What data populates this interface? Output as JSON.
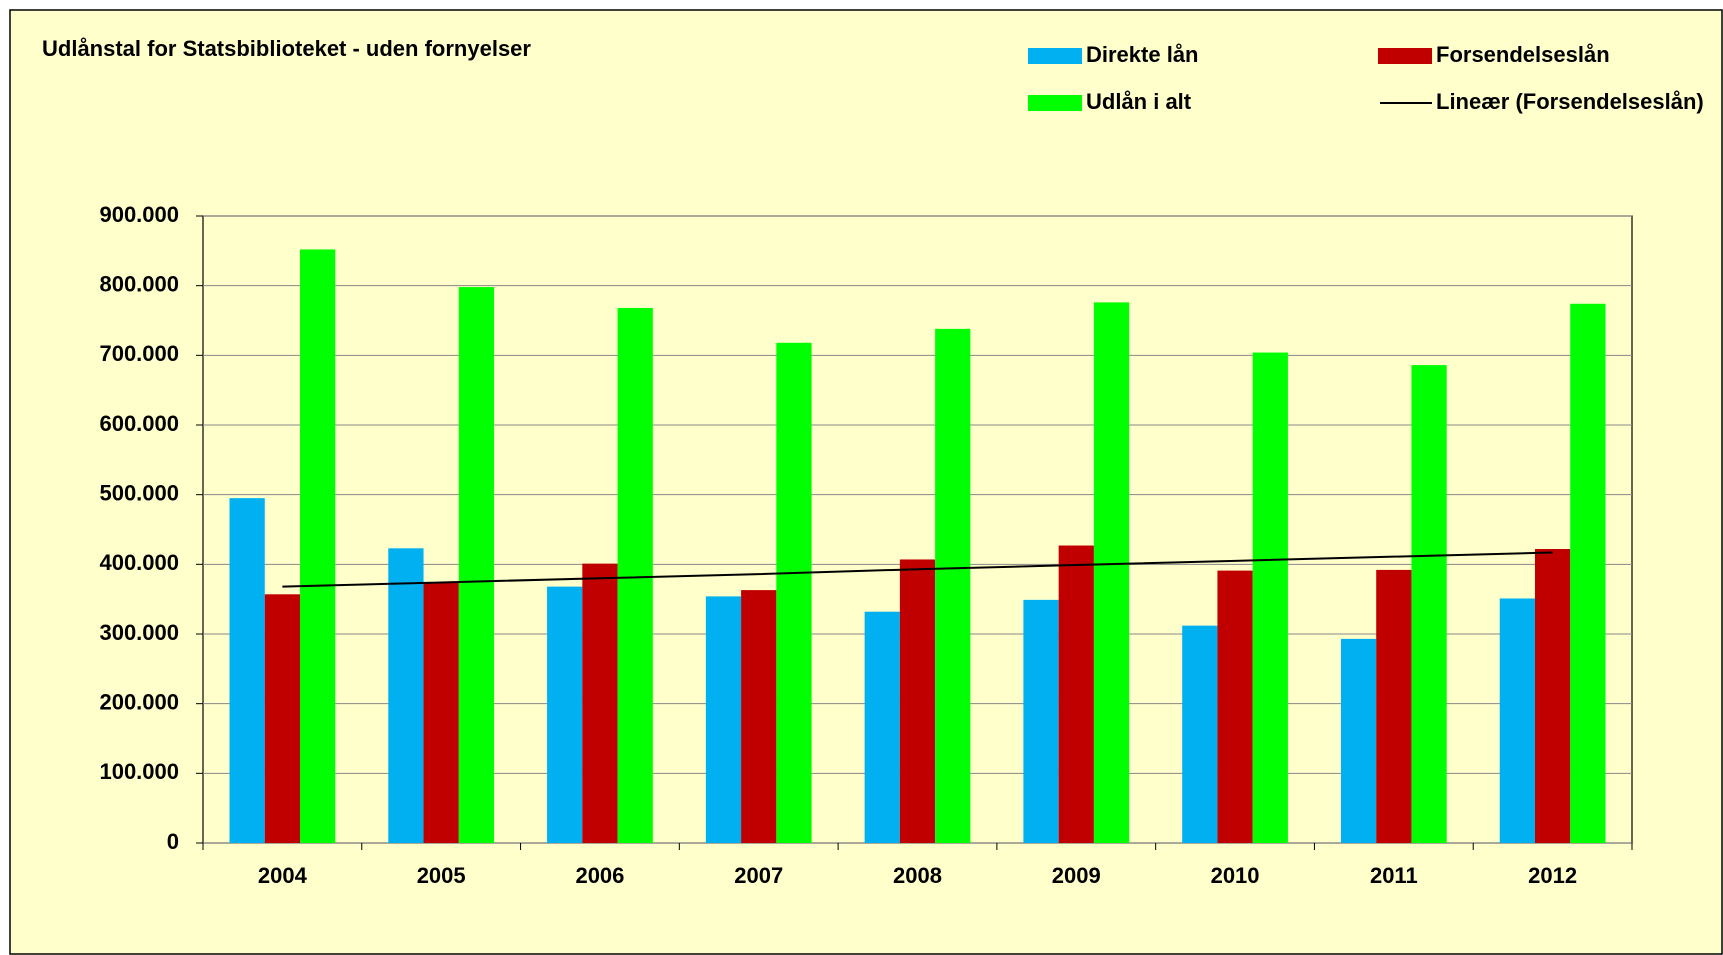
{
  "chart_data": {
    "type": "bar",
    "title": "Udlånstal for Statsbiblioteket - uden fornyelser",
    "categories": [
      "2004",
      "2005",
      "2006",
      "2007",
      "2008",
      "2009",
      "2010",
      "2011",
      "2012"
    ],
    "series": [
      {
        "name": "Direkte lån",
        "color": "#00b0f0",
        "values": [
          495000,
          423000,
          368000,
          354000,
          332000,
          349000,
          312000,
          293000,
          351000
        ]
      },
      {
        "name": "Forsendelseslån",
        "color": "#c00000",
        "values": [
          357000,
          374000,
          401000,
          363000,
          407000,
          427000,
          391000,
          392000,
          422000
        ]
      },
      {
        "name": "Udlån i alt",
        "color": "#00ff00",
        "values": [
          852000,
          798000,
          768000,
          718000,
          738000,
          776000,
          704000,
          686000,
          774000
        ]
      },
      {
        "name": "Lineær (Forsendelseslån)",
        "type": "line",
        "color": "#000000",
        "values": [
          368000,
          374000,
          380000,
          386000,
          393000,
          399000,
          405000,
          411000,
          417000
        ]
      }
    ],
    "ylim": [
      0,
      900000
    ],
    "yticks": [
      0,
      {
        "value": 100000,
        "label": "100.000"
      },
      {
        "value": 200000,
        "label": "200.000"
      },
      {
        "value": 300000,
        "label": "300.000"
      },
      {
        "value": 400000,
        "label": "400.000"
      },
      {
        "value": 500000,
        "label": "500.000"
      },
      {
        "value": 600000,
        "label": "600.000"
      },
      {
        "value": 700000,
        "label": "700.000"
      },
      {
        "value": 800000,
        "label": "800.000"
      },
      {
        "value": 900000,
        "label": "900.000"
      }
    ],
    "grid": true,
    "legend": "top-right"
  }
}
